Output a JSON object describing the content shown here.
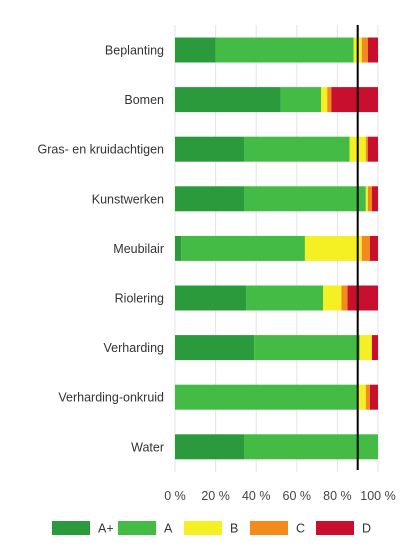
{
  "chart_data": {
    "type": "bar",
    "orientation": "horizontal",
    "stacked": true,
    "percent": true,
    "categories": [
      "Beplanting",
      "Bomen",
      "Gras- en kruidachtigen",
      "Kunstwerken",
      "Meubilair",
      "Riolering",
      "Verharding",
      "Verharding-onkruid",
      "Water"
    ],
    "series": [
      {
        "name": "A+",
        "color": "#2a9a3c",
        "values": [
          20,
          52,
          34,
          34,
          3,
          35,
          39,
          0,
          34
        ]
      },
      {
        "name": "A",
        "color": "#44bb44",
        "values": [
          68,
          20,
          52,
          60,
          61,
          38,
          52,
          90,
          66
        ]
      },
      {
        "name": "B",
        "color": "#f4f023",
        "values": [
          4,
          3,
          8,
          1,
          28,
          9,
          6,
          4,
          0
        ]
      },
      {
        "name": "C",
        "color": "#f38a1c",
        "values": [
          3,
          2,
          1,
          2,
          4,
          3,
          0,
          2,
          0
        ]
      },
      {
        "name": "D",
        "color": "#c8102e",
        "values": [
          5,
          23,
          5,
          3,
          4,
          15,
          3,
          4,
          0
        ]
      }
    ],
    "xlim": [
      0,
      100
    ],
    "x_ticks": [
      "0 %",
      "20 %",
      "40 %",
      "60 %",
      "80 %",
      "100 %"
    ],
    "reference_line": 90,
    "grid": true,
    "legend_position": "bottom"
  }
}
